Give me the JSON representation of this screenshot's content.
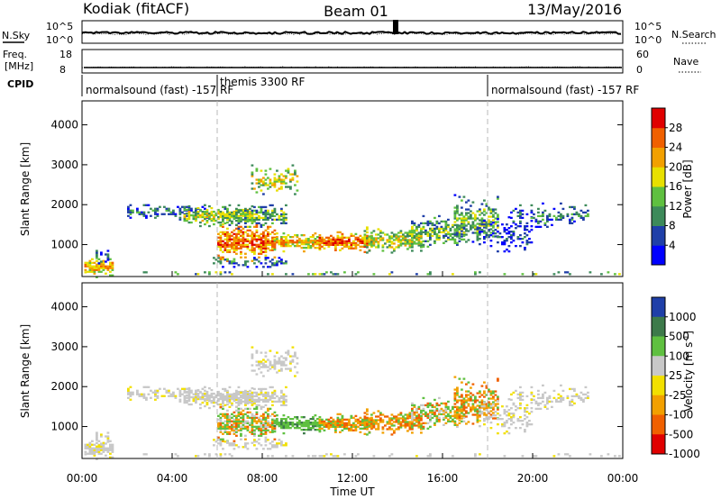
{
  "header": {
    "station": "Kodiak (fitACF)",
    "beam": "Beam 01",
    "date": "13/May/2016"
  },
  "nsky_panel": {
    "left_label": "N.Sky",
    "left_ticks": [
      "10^5",
      "10^0"
    ],
    "right_ticks": [
      "10^5",
      "10^0"
    ],
    "right_label": "N.Search"
  },
  "freq_panel": {
    "left_label_1": "Freq.",
    "left_label_2": "[MHz]",
    "left_ticks": [
      "18",
      "8"
    ],
    "right_ticks": [
      "60",
      "0"
    ],
    "right_label": "Nave"
  },
  "cpid": {
    "label": "CPID",
    "segments": [
      {
        "text": "normalsound (fast) -157 RF"
      },
      {
        "text": "themis 3300 RF"
      },
      {
        "text": "normalsound (fast) -157 RF"
      }
    ]
  },
  "chart_data": [
    {
      "type": "heatmap",
      "name": "power",
      "ylabel": "Slant Range [km]",
      "ylim": [
        200,
        4600
      ],
      "yticks": [
        "1000",
        "2000",
        "3000",
        "4000"
      ],
      "xlim": [
        0,
        24
      ],
      "colorbar": {
        "label": "Power [dB]",
        "ticks": [
          "4",
          "8",
          "12",
          "16",
          "20",
          "24",
          "28"
        ],
        "colors": [
          "#0000ff",
          "#1f3fa8",
          "#3d8a5a",
          "#5fc040",
          "#e8e000",
          "#f2a000",
          "#f06000",
          "#e00000"
        ]
      }
    },
    {
      "type": "heatmap",
      "name": "velocity",
      "ylabel": "Slant Range [km]",
      "ylim": [
        200,
        4600
      ],
      "yticks": [
        "1000",
        "2000",
        "3000",
        "4000"
      ],
      "xlim": [
        0,
        24
      ],
      "xlabel": "Time UT",
      "xticks": [
        "00:00",
        "04:00",
        "08:00",
        "12:00",
        "16:00",
        "20:00",
        "00:00"
      ],
      "colorbar": {
        "label": "Velocity [m s-1]",
        "ticks": [
          "1000",
          "500",
          "100",
          "25",
          "-25",
          "-100",
          "-500",
          "-1000"
        ],
        "colors": [
          "#1f3fa8",
          "#3d7a4a",
          "#5fc040",
          "#c8c8c8",
          "#f2e000",
          "#f2a000",
          "#f06000",
          "#e00000"
        ]
      }
    }
  ]
}
